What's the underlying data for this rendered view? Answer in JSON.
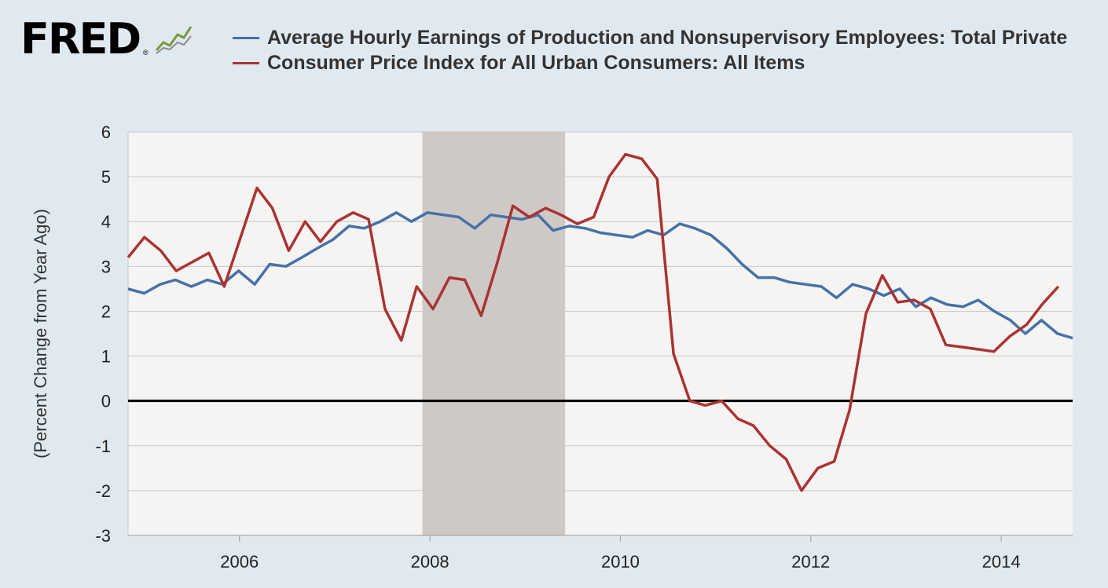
{
  "branding": {
    "logo_text": "FRED",
    "logo_mark": "®",
    "icon": "line-chart-icon"
  },
  "chart_data": {
    "type": "line",
    "title": "",
    "ylabel": "(Percent Change from Year Ago)",
    "xlabel": "",
    "xlim": [
      2004.83,
      2014.75
    ],
    "ylim": [
      -3,
      6
    ],
    "yticks": [
      "6",
      "5",
      "4",
      "3",
      "2",
      "1",
      "0",
      "-1",
      "-2",
      "-3"
    ],
    "xticks": [
      "2006",
      "2008",
      "2010",
      "2012",
      "2014"
    ],
    "grid": "horizontal",
    "legend_position": "top",
    "recession_shading": {
      "start": 2007.92,
      "end": 2009.42,
      "color": "#cfc9c6"
    },
    "zero_line": true,
    "series": [
      {
        "name": "Average Hourly Earnings of Production and Nonsupervisory Employees: Total Private",
        "color": "#4572a7",
        "points": [
          [
            2004.83,
            2.5
          ],
          [
            2005.0,
            2.4
          ],
          [
            2005.17,
            2.6
          ],
          [
            2005.33,
            2.7
          ],
          [
            2005.5,
            2.55
          ],
          [
            2005.67,
            2.7
          ],
          [
            2005.83,
            2.6
          ],
          [
            2006.0,
            2.9
          ],
          [
            2006.17,
            2.6
          ],
          [
            2006.33,
            3.05
          ],
          [
            2006.5,
            3.0
          ],
          [
            2006.67,
            3.2
          ],
          [
            2006.83,
            3.4
          ],
          [
            2007.0,
            3.6
          ],
          [
            2007.17,
            3.9
          ],
          [
            2007.33,
            3.85
          ],
          [
            2007.5,
            4.0
          ],
          [
            2007.67,
            4.2
          ],
          [
            2007.83,
            4.0
          ],
          [
            2008.0,
            4.2
          ],
          [
            2008.17,
            4.15
          ],
          [
            2008.33,
            4.1
          ],
          [
            2008.5,
            3.85
          ],
          [
            2008.67,
            4.15
          ],
          [
            2008.83,
            4.1
          ],
          [
            2009.0,
            4.05
          ],
          [
            2009.17,
            4.15
          ],
          [
            2009.33,
            3.8
          ],
          [
            2009.5,
            3.9
          ],
          [
            2009.67,
            3.85
          ],
          [
            2009.83,
            3.75
          ],
          [
            2010.0,
            3.7
          ],
          [
            2010.17,
            3.65
          ],
          [
            2010.33,
            3.8
          ],
          [
            2010.5,
            3.7
          ],
          [
            2010.67,
            3.95
          ],
          [
            2010.83,
            3.85
          ],
          [
            2011.0,
            3.7
          ],
          [
            2011.17,
            3.4
          ],
          [
            2011.33,
            3.05
          ],
          [
            2011.5,
            2.75
          ],
          [
            2011.67,
            2.75
          ],
          [
            2011.83,
            2.65
          ],
          [
            2012.0,
            2.6
          ],
          [
            2012.17,
            2.55
          ],
          [
            2012.33,
            2.3
          ],
          [
            2012.5,
            2.6
          ],
          [
            2012.67,
            2.5
          ],
          [
            2012.83,
            2.35
          ],
          [
            2013.0,
            2.5
          ],
          [
            2013.17,
            2.1
          ],
          [
            2013.33,
            2.3
          ],
          [
            2013.5,
            2.15
          ],
          [
            2013.67,
            2.1
          ],
          [
            2013.83,
            2.25
          ],
          [
            2014.0,
            2.0
          ],
          [
            2014.17,
            1.8
          ],
          [
            2014.33,
            1.5
          ],
          [
            2014.5,
            1.8
          ],
          [
            2014.67,
            1.5
          ],
          [
            2014.83,
            1.4
          ]
        ],
        "x_scale_note": "x values are decimal years"
      },
      {
        "name": "Consumer Price Index for All Urban Consumers: All Items",
        "color": "#aa3333",
        "points": [
          [
            2004.83,
            3.2
          ],
          [
            2005.0,
            3.65
          ],
          [
            2005.17,
            3.35
          ],
          [
            2005.33,
            2.9
          ],
          [
            2005.5,
            3.1
          ],
          [
            2005.67,
            3.3
          ],
          [
            2005.83,
            2.55
          ],
          [
            2006.0,
            3.65
          ],
          [
            2006.17,
            4.75
          ],
          [
            2006.33,
            4.3
          ],
          [
            2006.5,
            3.35
          ],
          [
            2006.67,
            4.0
          ],
          [
            2006.83,
            3.55
          ],
          [
            2007.0,
            4.0
          ],
          [
            2007.17,
            4.2
          ],
          [
            2007.33,
            4.05
          ],
          [
            2007.5,
            2.05
          ],
          [
            2007.67,
            1.35
          ],
          [
            2007.83,
            2.55
          ],
          [
            2008.0,
            2.05
          ],
          [
            2008.17,
            2.75
          ],
          [
            2008.33,
            2.7
          ],
          [
            2008.5,
            1.9
          ],
          [
            2008.67,
            3.1
          ],
          [
            2008.83,
            4.35
          ],
          [
            2009.0,
            4.1
          ],
          [
            2009.17,
            4.3
          ],
          [
            2009.33,
            4.15
          ],
          [
            2009.5,
            3.95
          ],
          [
            2009.67,
            4.1
          ],
          [
            2009.83,
            5.0
          ],
          [
            2010.0,
            5.5
          ],
          [
            2010.17,
            5.4
          ],
          [
            2010.33,
            4.95
          ],
          [
            2010.5,
            1.05
          ],
          [
            2010.67,
            0.0
          ],
          [
            2010.83,
            -0.1
          ],
          [
            2011.0,
            0.0
          ],
          [
            2011.17,
            -0.4
          ],
          [
            2011.33,
            -0.55
          ],
          [
            2011.5,
            -1.0
          ],
          [
            2011.67,
            -1.3
          ],
          [
            2011.83,
            -2.0
          ],
          [
            2012.0,
            -1.5
          ],
          [
            2012.17,
            -1.35
          ],
          [
            2012.33,
            -0.2
          ],
          [
            2012.5,
            1.95
          ],
          [
            2012.67,
            2.8
          ],
          [
            2012.83,
            2.2
          ],
          [
            2013.0,
            2.25
          ],
          [
            2013.17,
            2.05
          ],
          [
            2013.33,
            1.25
          ],
          [
            2013.5,
            1.2
          ],
          [
            2013.67,
            1.15
          ],
          [
            2013.83,
            1.1
          ],
          [
            2014.0,
            1.45
          ],
          [
            2014.17,
            1.7
          ],
          [
            2014.33,
            2.15
          ],
          [
            2014.5,
            2.55
          ]
        ]
      }
    ]
  }
}
